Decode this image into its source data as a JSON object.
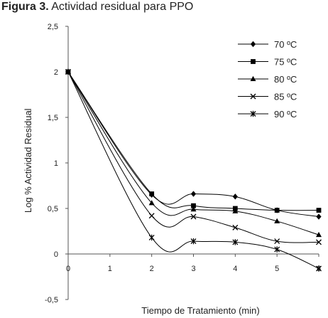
{
  "figure": {
    "number_label": "Figura 3.",
    "title": "Actividad residual para PPO"
  },
  "chart_data": {
    "type": "line",
    "title": "Actividad residual para PPO",
    "xlabel": "Tiempo de Tratamiento (min)",
    "ylabel": "Log % Actividad Residual",
    "xlim": [
      0,
      6
    ],
    "ylim": [
      -0.5,
      2.5
    ],
    "x_ticks": [
      0,
      1,
      2,
      3,
      4,
      5,
      6
    ],
    "x_tick_labels": [
      "0",
      "1",
      "2",
      "3",
      "4",
      "5",
      "6"
    ],
    "y_ticks": [
      -0.5,
      0,
      0.5,
      1,
      1.5,
      2,
      2.5
    ],
    "y_tick_labels": [
      "-0,5",
      "0",
      "0,5",
      "1",
      "1,5",
      "2",
      "2,5"
    ],
    "grid": false,
    "legend_position": "top-right",
    "x": [
      0,
      2,
      3,
      4,
      5,
      6
    ],
    "series": [
      {
        "name": "70 ºC",
        "marker": "diamond",
        "values": [
          2.0,
          0.65,
          0.66,
          0.63,
          0.48,
          0.41
        ]
      },
      {
        "name": "75 ºC",
        "marker": "square",
        "values": [
          2.0,
          0.66,
          0.53,
          0.5,
          0.48,
          0.48
        ]
      },
      {
        "name": "80 ºC",
        "marker": "triangle",
        "values": [
          2.0,
          0.56,
          0.49,
          0.47,
          0.36,
          0.21
        ]
      },
      {
        "name": "85 ºC",
        "marker": "x",
        "values": [
          2.0,
          0.42,
          0.41,
          0.29,
          0.14,
          0.13
        ]
      },
      {
        "name": "90 ºC",
        "marker": "star",
        "values": [
          2.0,
          0.18,
          0.14,
          0.13,
          0.05,
          -0.16
        ]
      }
    ],
    "colors": {
      "line": "#000000",
      "axis": "#555555",
      "text": "#222222"
    }
  }
}
